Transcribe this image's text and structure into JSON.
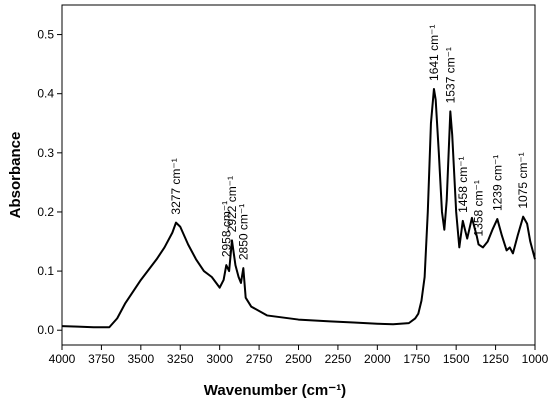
{
  "chart_data": {
    "type": "line",
    "x_label": "Wavenumber (cm⁻¹)",
    "y_label": "Absorbance",
    "x": [
      4000,
      3900,
      3800,
      3700,
      3650,
      3600,
      3500,
      3400,
      3350,
      3300,
      3277,
      3250,
      3200,
      3150,
      3100,
      3050,
      3000,
      2975,
      2958,
      2940,
      2922,
      2900,
      2880,
      2865,
      2850,
      2835,
      2800,
      2700,
      2500,
      2300,
      2150,
      2000,
      1900,
      1800,
      1760,
      1740,
      1720,
      1700,
      1680,
      1660,
      1641,
      1630,
      1610,
      1590,
      1575,
      1560,
      1537,
      1525,
      1500,
      1480,
      1458,
      1430,
      1400,
      1370,
      1358,
      1330,
      1300,
      1270,
      1239,
      1210,
      1180,
      1160,
      1140,
      1110,
      1075,
      1050,
      1030,
      1000
    ],
    "series": [
      {
        "color": "#000000",
        "values": [
          0.007,
          0.006,
          0.005,
          0.005,
          0.02,
          0.045,
          0.085,
          0.12,
          0.14,
          0.165,
          0.182,
          0.175,
          0.145,
          0.12,
          0.1,
          0.09,
          0.072,
          0.085,
          0.11,
          0.1,
          0.152,
          0.11,
          0.09,
          0.08,
          0.105,
          0.055,
          0.04,
          0.025,
          0.018,
          0.015,
          0.013,
          0.011,
          0.01,
          0.012,
          0.02,
          0.028,
          0.05,
          0.09,
          0.2,
          0.35,
          0.408,
          0.39,
          0.3,
          0.2,
          0.17,
          0.22,
          0.37,
          0.33,
          0.2,
          0.14,
          0.185,
          0.155,
          0.19,
          0.16,
          0.145,
          0.14,
          0.15,
          0.17,
          0.188,
          0.16,
          0.135,
          0.14,
          0.13,
          0.16,
          0.192,
          0.18,
          0.15,
          0.12
        ]
      }
    ],
    "xlim": [
      4000,
      1000
    ],
    "ylim": [
      -0.025,
      0.55
    ],
    "xticks": [
      4000,
      3750,
      3500,
      3250,
      3000,
      2750,
      2500,
      2250,
      2000,
      1750,
      1500,
      1250,
      1000
    ],
    "yticks": [
      {
        "value": 0,
        "label": "0.0"
      },
      0.1,
      0.2,
      0.3,
      0.4,
      0.5
    ],
    "annotations": [
      {
        "text": "3277 cm⁻¹",
        "x": 3277
      },
      {
        "text": "2958 cm⁻¹",
        "x": 2958
      },
      {
        "text": "2922 cm⁻¹",
        "x": 2922
      },
      {
        "text": "2850 cm⁻¹",
        "x": 2850
      },
      {
        "text": "1641 cm⁻¹",
        "x": 1641
      },
      {
        "text": "1537 cm⁻¹",
        "x": 1537
      },
      {
        "text": "1458 cm⁻¹",
        "x": 1458
      },
      {
        "text": "1358 cm⁻¹",
        "x": 1358
      },
      {
        "text": "1239 cm⁻¹",
        "x": 1239
      },
      {
        "text": "1075 cm⁻¹",
        "x": 1075
      }
    ]
  }
}
